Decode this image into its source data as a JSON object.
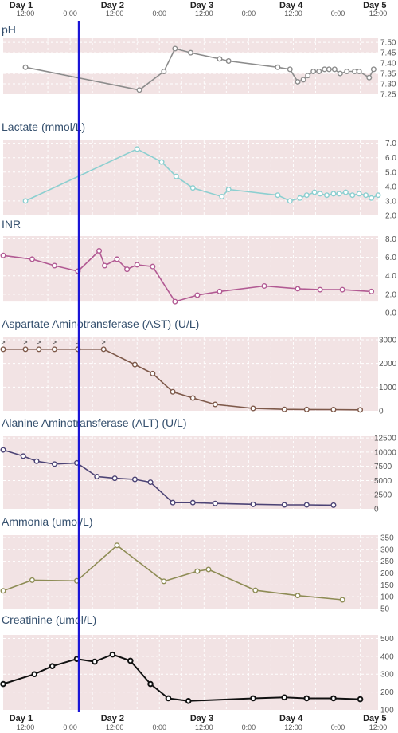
{
  "time_axis": {
    "days": [
      "Day 1",
      "Day 2",
      "Day 3",
      "Day 4",
      "Day 5"
    ],
    "ticks": [
      "12:00",
      "0:00",
      "12:00",
      "0:00",
      "12:00",
      "0:00",
      "12:00",
      "0:00",
      "12:00"
    ],
    "xlim": [
      0,
      16.8
    ]
  },
  "cursor_x": 3.4,
  "chart_data": [
    {
      "type": "line",
      "title": "pH",
      "title_unit": "",
      "color": "#8c8c8c",
      "ylim": [
        7.25,
        7.52
      ],
      "yticks": [
        "7.50",
        "7.45",
        "7.40",
        "7.35",
        "7.30",
        "7.25"
      ],
      "abnormal_bands": [
        [
          7.45,
          7.52
        ],
        [
          7.25,
          7.35
        ]
      ],
      "x": [
        1.0,
        6.1,
        7.2,
        7.7,
        8.4,
        9.7,
        10.1,
        12.3,
        12.85,
        13.2,
        13.45,
        13.65,
        13.9,
        14.15,
        14.4,
        14.6,
        14.85,
        15.1,
        15.4,
        15.75,
        15.95,
        16.4,
        16.6
      ],
      "y": [
        7.38,
        7.27,
        7.36,
        7.47,
        7.45,
        7.42,
        7.41,
        7.38,
        7.37,
        7.31,
        7.32,
        7.34,
        7.36,
        7.36,
        7.37,
        7.37,
        7.37,
        7.35,
        7.36,
        7.36,
        7.36,
        7.33,
        7.37
      ]
    },
    {
      "type": "line",
      "title": "Lactate",
      "title_unit": "(mmol/L)",
      "color": "#8ccfd0",
      "ylim": [
        2.0,
        7.2
      ],
      "yticks": [
        "7.0",
        "6.0",
        "5.0",
        "4.0",
        "3.0",
        "2.0"
      ],
      "abnormal_bands": [
        [
          2.0,
          7.2
        ]
      ],
      "x": [
        1.0,
        6.0,
        7.1,
        7.75,
        8.5,
        9.8,
        10.1,
        12.3,
        12.85,
        13.3,
        13.6,
        13.95,
        14.2,
        14.5,
        14.8,
        15.05,
        15.35,
        15.65,
        15.95,
        16.25,
        16.5,
        16.8
      ],
      "y": [
        3.0,
        6.6,
        5.7,
        4.7,
        3.9,
        3.3,
        3.8,
        3.4,
        3.0,
        3.2,
        3.4,
        3.6,
        3.5,
        3.4,
        3.5,
        3.5,
        3.6,
        3.4,
        3.5,
        3.4,
        3.2,
        3.4
      ]
    },
    {
      "type": "line",
      "title": "INR",
      "title_unit": "",
      "color": "#b25a93",
      "ylim": [
        0.0,
        8.3
      ],
      "yticks": [
        "8.0",
        "6.0",
        "4.0",
        "2.0",
        "0.0"
      ],
      "abnormal_bands": [
        [
          1.2,
          8.3
        ]
      ],
      "x": [
        0.0,
        1.3,
        2.3,
        3.35,
        4.3,
        4.55,
        5.1,
        5.55,
        6.0,
        6.7,
        7.7,
        8.7,
        9.7,
        11.7,
        13.2,
        14.2,
        15.2,
        16.5
      ],
      "y": [
        6.2,
        5.8,
        5.1,
        4.5,
        6.7,
        5.1,
        5.8,
        4.7,
        5.2,
        5.0,
        1.2,
        1.9,
        2.3,
        2.9,
        2.6,
        2.5,
        2.5,
        2.3
      ]
    },
    {
      "type": "line",
      "title": "Aspartate Aminotransferase (AST)",
      "title_unit": "(U/L)",
      "color": "#7e594a",
      "ylim": [
        0,
        3100
      ],
      "yticks": [
        "3000",
        "2000",
        "1000",
        "0"
      ],
      "abnormal_bands": [
        [
          0,
          3100
        ]
      ],
      "above_limit_marker": ">",
      "above_limit_x": [
        0.0,
        1.0,
        1.6,
        2.3,
        3.35,
        4.5
      ],
      "x": [
        0.0,
        1.0,
        1.6,
        2.3,
        3.35,
        4.5,
        5.9,
        6.7,
        7.6,
        8.5,
        9.5,
        11.2,
        12.6,
        13.6,
        14.8,
        16.0
      ],
      "y": [
        2600,
        2600,
        2600,
        2600,
        2600,
        2600,
        1950,
        1570,
        800,
        540,
        270,
        100,
        60,
        55,
        50,
        40
      ]
    },
    {
      "type": "line",
      "title": "Alanine Aminotransferase (ALT)",
      "title_unit": "(U/L)",
      "color": "#4c4375",
      "ylim": [
        0,
        12800
      ],
      "yticks": [
        "12500",
        "10000",
        "7500",
        "5000",
        "2500",
        "0"
      ],
      "abnormal_bands": [
        [
          0,
          12800
        ]
      ],
      "x": [
        0.0,
        0.9,
        1.5,
        2.3,
        3.3,
        4.2,
        5.0,
        5.9,
        6.6,
        7.6,
        8.5,
        9.5,
        11.2,
        12.6,
        13.6,
        14.8
      ],
      "y": [
        10400,
        9300,
        8400,
        7900,
        8100,
        5700,
        5400,
        5200,
        4700,
        1100,
        1100,
        950,
        800,
        700,
        700,
        650
      ]
    },
    {
      "type": "line",
      "title": "Ammonia",
      "title_unit": "(umol/L)",
      "color": "#8e8c55",
      "ylim": [
        50,
        360
      ],
      "yticks": [
        "350",
        "300",
        "250",
        "200",
        "150",
        "100",
        "50"
      ],
      "abnormal_bands": [
        [
          50,
          360
        ]
      ],
      "x": [
        0.0,
        1.3,
        3.3,
        5.1,
        7.2,
        8.7,
        9.2,
        11.3,
        13.2,
        15.2
      ],
      "y": [
        125,
        170,
        167,
        317,
        165,
        208,
        215,
        127,
        105,
        87
      ]
    },
    {
      "type": "line",
      "title": "Creatinine",
      "title_unit": "(umol/L)",
      "color": "#111111",
      "ylim": [
        100,
        520
      ],
      "yticks": [
        "500",
        "400",
        "300",
        "200",
        "100"
      ],
      "abnormal_bands": [
        [
          100,
          520
        ]
      ],
      "x": [
        0.0,
        1.4,
        2.2,
        3.3,
        4.1,
        4.9,
        5.7,
        6.6,
        7.4,
        8.3,
        11.2,
        12.6,
        13.6,
        14.8,
        16.0
      ],
      "y": [
        245,
        300,
        345,
        385,
        370,
        410,
        375,
        245,
        165,
        150,
        165,
        170,
        165,
        165,
        160
      ]
    }
  ]
}
